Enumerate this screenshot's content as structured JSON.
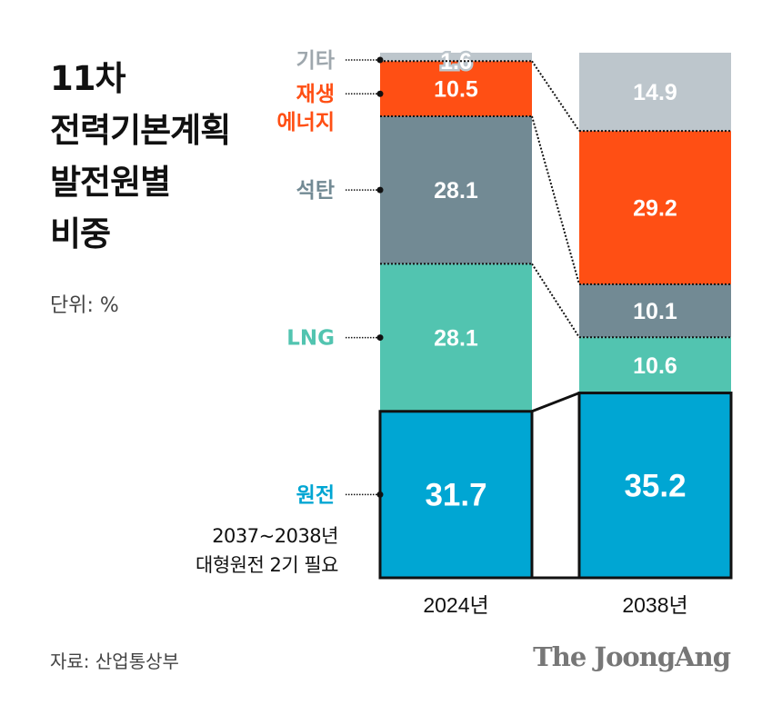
{
  "title_lines": [
    "11차",
    "전력기본계획",
    "발전원별",
    "비중"
  ],
  "unit": "단위: %",
  "source": "자료: 산업통상부",
  "logo": "The JoongAng",
  "note_lines": [
    "2037~2038년",
    "대형원전 2기 필요"
  ],
  "chart_data": {
    "type": "bar",
    "stacked": true,
    "categories": [
      "2024년",
      "2038년"
    ],
    "series": [
      {
        "name": "원전",
        "values": [
          31.7,
          35.2
        ],
        "color": "#00a6d3",
        "label_color": "#00a6d3"
      },
      {
        "name": "LNG",
        "values": [
          28.1,
          10.6
        ],
        "color": "#52c4b0",
        "label_color": "#52c4b0"
      },
      {
        "name": "석탄",
        "values": [
          28.1,
          10.1
        ],
        "color": "#728a94",
        "label_color": "#728a94"
      },
      {
        "name": "재생\n에너지",
        "values": [
          10.5,
          29.2
        ],
        "color": "#ff4f14",
        "label_color": "#ff4f14"
      },
      {
        "name": "기타",
        "values": [
          1.6,
          14.9
        ],
        "color": "#bdc6cc",
        "label_color": "#9ea7ad"
      }
    ],
    "value_labels": [
      [
        "31.7",
        "35.2"
      ],
      [
        "28.1",
        "10.6"
      ],
      [
        "28.1",
        "10.1"
      ],
      [
        "10.5",
        "29.2"
      ],
      [
        "1.6",
        "14.9"
      ]
    ],
    "ylim": [
      0,
      100
    ],
    "highlight_series": "원전",
    "grid": false
  }
}
